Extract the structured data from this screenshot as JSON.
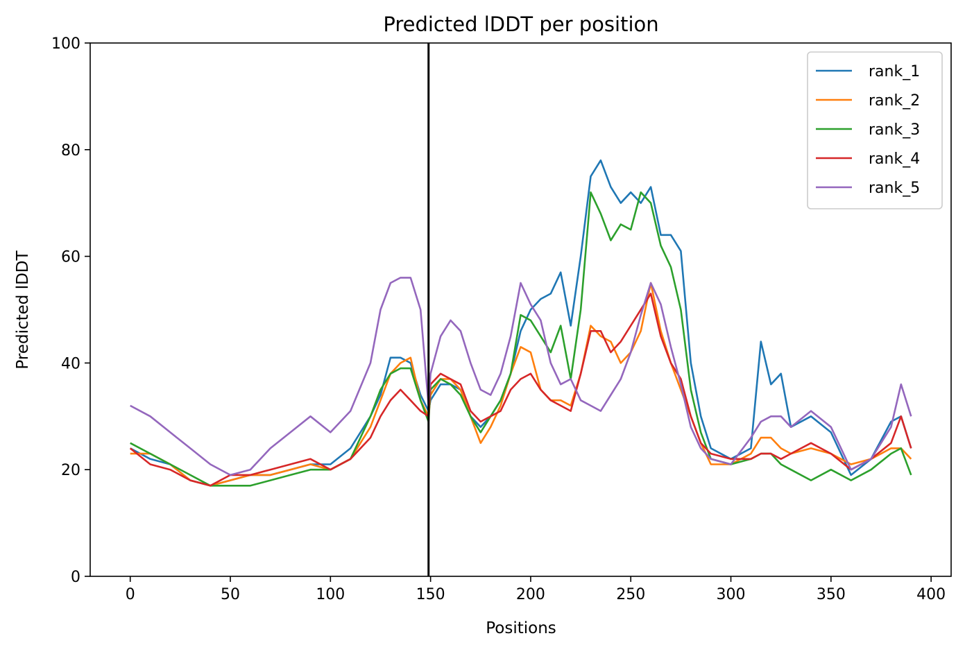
{
  "chart_data": {
    "type": "line",
    "title": "Predicted lDDT per position",
    "xlabel": "Positions",
    "ylabel": "Predicted lDDT",
    "xlim": [
      -20,
      410
    ],
    "ylim": [
      0,
      100
    ],
    "xticks": [
      0,
      50,
      100,
      150,
      200,
      250,
      300,
      350,
      400
    ],
    "yticks": [
      0,
      20,
      40,
      60,
      80,
      100
    ],
    "grid": false,
    "legend": "top-right",
    "vertical_marker_x": 149,
    "colors": {
      "rank_1": "#1f77b4",
      "rank_2": "#ff7f0e",
      "rank_3": "#2ca02c",
      "rank_4": "#d62728",
      "rank_5": "#9467bd",
      "marker": "#000000"
    },
    "x": [
      0,
      10,
      20,
      30,
      40,
      50,
      60,
      70,
      80,
      90,
      100,
      110,
      120,
      125,
      130,
      135,
      140,
      145,
      149,
      150,
      155,
      160,
      165,
      170,
      175,
      180,
      185,
      190,
      195,
      200,
      205,
      210,
      215,
      220,
      225,
      230,
      235,
      240,
      245,
      250,
      255,
      260,
      265,
      270,
      275,
      280,
      285,
      290,
      300,
      310,
      315,
      320,
      325,
      330,
      340,
      350,
      360,
      370,
      380,
      385,
      390
    ],
    "series": [
      {
        "name": "rank_1",
        "values": [
          24,
          22,
          21,
          18,
          17,
          18,
          19,
          19,
          20,
          21,
          21,
          24,
          30,
          34,
          41,
          41,
          40,
          34,
          31,
          33,
          36,
          36,
          35,
          30,
          28,
          30,
          33,
          38,
          46,
          50,
          52,
          53,
          57,
          47,
          60,
          75,
          78,
          73,
          70,
          72,
          70,
          73,
          64,
          64,
          61,
          40,
          30,
          24,
          22,
          24,
          44,
          36,
          38,
          28,
          30,
          27,
          19,
          22,
          29,
          30,
          24
        ]
      },
      {
        "name": "rank_2",
        "values": [
          23,
          23,
          21,
          18,
          17,
          18,
          19,
          19,
          20,
          21,
          20,
          22,
          28,
          33,
          38,
          40,
          41,
          33,
          30,
          34,
          37,
          37,
          35,
          30,
          25,
          28,
          32,
          38,
          43,
          42,
          35,
          33,
          33,
          32,
          38,
          47,
          45,
          44,
          40,
          42,
          46,
          55,
          46,
          40,
          35,
          30,
          25,
          21,
          21,
          23,
          26,
          26,
          24,
          23,
          24,
          23,
          21,
          22,
          24,
          24,
          22
        ]
      },
      {
        "name": "rank_3",
        "values": [
          25,
          23,
          21,
          19,
          17,
          17,
          17,
          18,
          19,
          20,
          20,
          22,
          30,
          35,
          38,
          39,
          39,
          33,
          29,
          35,
          37,
          36,
          34,
          30,
          27,
          30,
          33,
          38,
          49,
          48,
          45,
          42,
          47,
          37,
          50,
          72,
          68,
          63,
          66,
          65,
          72,
          70,
          62,
          58,
          50,
          35,
          27,
          22,
          21,
          22,
          23,
          23,
          21,
          20,
          18,
          20,
          18,
          20,
          23,
          24,
          19
        ]
      },
      {
        "name": "rank_4",
        "values": [
          24,
          21,
          20,
          18,
          17,
          19,
          19,
          20,
          21,
          22,
          20,
          22,
          26,
          30,
          33,
          35,
          33,
          31,
          30,
          36,
          38,
          37,
          36,
          31,
          29,
          30,
          31,
          35,
          37,
          38,
          35,
          33,
          32,
          31,
          38,
          46,
          46,
          42,
          44,
          47,
          50,
          53,
          45,
          40,
          37,
          30,
          25,
          23,
          22,
          22,
          23,
          23,
          22,
          23,
          25,
          23,
          20,
          22,
          25,
          30,
          24
        ]
      },
      {
        "name": "rank_5",
        "values": [
          32,
          30,
          27,
          24,
          21,
          19,
          20,
          24,
          27,
          30,
          27,
          31,
          40,
          50,
          55,
          56,
          56,
          50,
          32,
          38,
          45,
          48,
          46,
          40,
          35,
          34,
          38,
          45,
          55,
          51,
          48,
          40,
          36,
          37,
          33,
          32,
          31,
          34,
          37,
          42,
          49,
          55,
          51,
          43,
          36,
          28,
          24,
          22,
          21,
          26,
          29,
          30,
          30,
          28,
          31,
          28,
          20,
          22,
          28,
          36,
          30
        ]
      }
    ]
  }
}
